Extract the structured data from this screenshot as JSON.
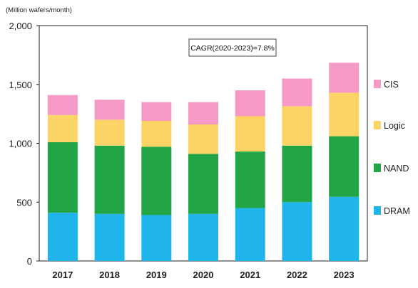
{
  "chart_data": {
    "type": "bar",
    "stacked": true,
    "unit_label": "(Million wafers/month)",
    "categories": [
      "2017",
      "2018",
      "2019",
      "2020",
      "2021",
      "2022",
      "2023"
    ],
    "series": [
      {
        "name": "DRAM",
        "color": "#1fb4ea",
        "values": [
          410,
          400,
          390,
          400,
          450,
          500,
          545
        ]
      },
      {
        "name": "NAND",
        "color": "#22a546",
        "values": [
          600,
          580,
          580,
          510,
          480,
          480,
          515
        ]
      },
      {
        "name": "Logic",
        "color": "#fcd466",
        "values": [
          230,
          220,
          220,
          250,
          300,
          335,
          370
        ]
      },
      {
        "name": "CIS",
        "color": "#f59ac6",
        "values": [
          170,
          170,
          160,
          190,
          220,
          235,
          255
        ]
      }
    ],
    "ylim": [
      0,
      2000
    ],
    "yticks": [
      0,
      500,
      1000,
      1500,
      2000
    ],
    "ytick_labels": [
      "0",
      "500",
      "1,000",
      "1,500",
      "2,000"
    ],
    "annotation": "CAGR(2020-2023)=7.8%",
    "legend_placement": "right",
    "grid": false
  }
}
